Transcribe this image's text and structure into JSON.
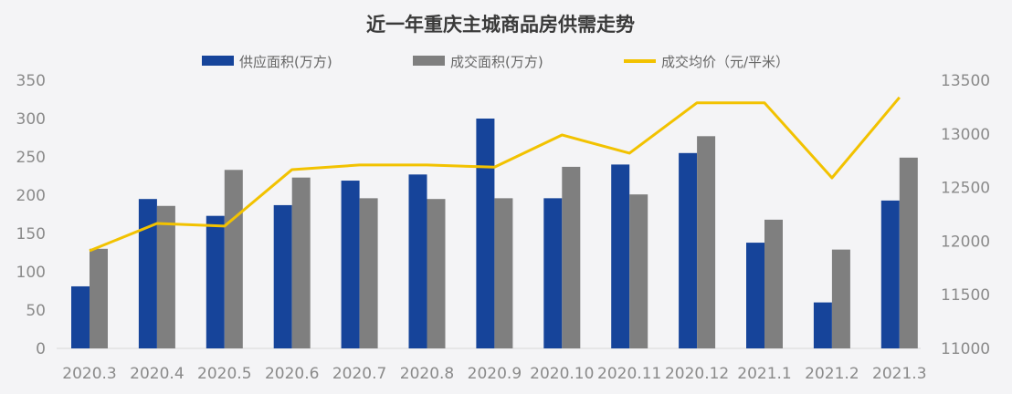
{
  "chart_data": {
    "type": "bar",
    "title": "近一年重庆主城商品房供需走势",
    "categories": [
      "2020.3",
      "2020.4",
      "2020.5",
      "2020.6",
      "2020.7",
      "2020.8",
      "2020.9",
      "2020.10",
      "2020.11",
      "2020.12",
      "2021.1",
      "2021.2",
      "2021.3"
    ],
    "series": [
      {
        "name": "供应面积(万方)",
        "type": "bar",
        "axis": "left",
        "color": "#16449a",
        "values": [
          81,
          195,
          173,
          187,
          219,
          227,
          300,
          196,
          240,
          255,
          138,
          60,
          193
        ]
      },
      {
        "name": "成交面积(万方)",
        "type": "bar",
        "axis": "left",
        "color": "#7f7f7f",
        "values": [
          130,
          186,
          233,
          223,
          196,
          195,
          196,
          237,
          201,
          277,
          168,
          129,
          249
        ]
      },
      {
        "name": "成交均价（元/平米）",
        "type": "line",
        "axis": "right",
        "color": "#f2c200",
        "values": [
          11910,
          12165,
          12140,
          12667,
          12710,
          12710,
          12690,
          12990,
          12820,
          13290,
          13290,
          12590,
          13340
        ]
      }
    ],
    "y_left": {
      "range": [
        0,
        350
      ],
      "ticks": [
        "0",
        "50",
        "100",
        "150",
        "200",
        "250",
        "300",
        "350"
      ]
    },
    "y_right": {
      "range": [
        11000,
        13500
      ],
      "ticks": [
        "11000",
        "11500",
        "12000",
        "12500",
        "13000",
        "13500"
      ]
    },
    "legend_position": "top",
    "grid": false
  }
}
